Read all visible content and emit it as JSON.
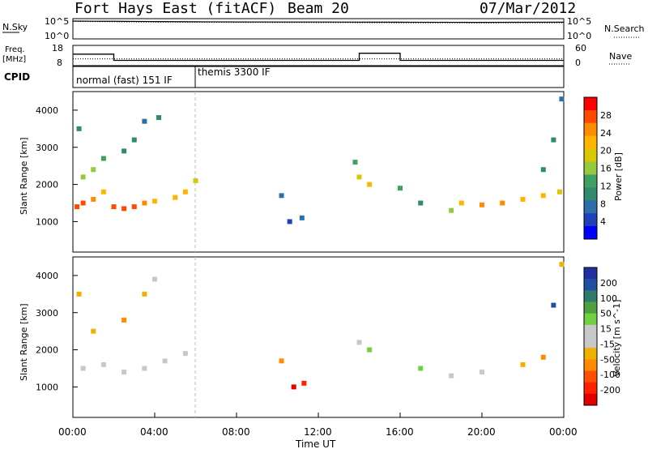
{
  "header": {
    "title": "Fort Hays East (fitACF)",
    "beam": "Beam 20",
    "date": "07/Mar/2012"
  },
  "sky_panel": {
    "left_label": "N.Sky",
    "right_label": "N.Search",
    "y_ticks": [
      "10^5",
      "10^0"
    ]
  },
  "freq_panel": {
    "left_label_line1": "Freq.",
    "left_label_line2": "[MHz]",
    "right_label": "Nave",
    "left_ticks": [
      "18",
      "8"
    ],
    "right_ticks": [
      "60",
      "0"
    ]
  },
  "cpid": {
    "label": "CPID",
    "modes": [
      "normal (fast) 151 IF",
      "themis 3300 IF"
    ]
  },
  "power_panel": {
    "ylabel": "Slant Range [km]",
    "y_ticks": [
      "4000",
      "3000",
      "2000",
      "1000"
    ],
    "colorbar_label": "Power [dB]",
    "colorbar_ticks": [
      "28",
      "24",
      "20",
      "16",
      "12",
      "8",
      "4"
    ],
    "colors": [
      "#ff0000",
      "#ff4a00",
      "#ff8c00",
      "#ffb400",
      "#d8c800",
      "#96c840",
      "#40a060",
      "#2f8a6e",
      "#2c6fa8",
      "#2040b8",
      "#0000ff"
    ]
  },
  "velocity_panel": {
    "ylabel": "Slant Range [km]",
    "y_ticks": [
      "4000",
      "3000",
      "2000",
      "1000"
    ],
    "colorbar_label": "Velocity [m s^-1]",
    "colorbar_ticks": [
      "200",
      "100",
      "50",
      "15",
      "-15",
      "-50",
      "-100",
      "-200"
    ],
    "colors": [
      "#2030a0",
      "#2050a0",
      "#2f7a6e",
      "#4fa040",
      "#70d040",
      "#c8c8c8",
      "#c8c8c8",
      "#f0b000",
      "#ff8c00",
      "#ff5000",
      "#ff2000",
      "#e00000"
    ]
  },
  "x_axis": {
    "label": "Time UT",
    "ticks": [
      "00:00",
      "04:00",
      "08:00",
      "12:00",
      "16:00",
      "20:00",
      "00:00"
    ]
  },
  "chart_data": [
    {
      "type": "line",
      "title": "N.Sky / N.Search",
      "x": [
        0,
        1,
        2,
        4,
        6,
        8,
        12,
        16,
        20,
        24
      ],
      "series": [
        {
          "name": "N.Sky",
          "values": [
            100000,
            90000,
            85000,
            70000,
            60000,
            55000,
            50000,
            45000,
            40000,
            45000
          ]
        },
        {
          "name": "N.Search",
          "values": [
            80000,
            70000,
            60000,
            50000,
            45000,
            40000,
            35000,
            30000,
            28000,
            30000
          ]
        }
      ],
      "ylim": [
        1,
        100000
      ],
      "xlim": [
        0,
        24
      ]
    },
    {
      "type": "line",
      "title": "Freq / Nave",
      "x": [
        0,
        2,
        2,
        14,
        14,
        16,
        16,
        24
      ],
      "series": [
        {
          "name": "Freq.",
          "values": [
            14,
            14,
            10.5,
            10.5,
            14.5,
            14.5,
            10.5,
            10.5
          ]
        },
        {
          "name": "Nave",
          "values": [
            20,
            20,
            20,
            20,
            20,
            20,
            20,
            20
          ]
        }
      ],
      "ylim": [
        8,
        18
      ],
      "xlim": [
        0,
        24
      ]
    },
    {
      "type": "heatmap",
      "title": "Power [dB]",
      "xlabel": "Time UT",
      "ylabel": "Slant Range [km]",
      "xlim": [
        0,
        24
      ],
      "ylim": [
        180,
        4500
      ],
      "clim": [
        0,
        30
      ],
      "points": [
        [
          0.2,
          1400,
          28
        ],
        [
          0.5,
          1500,
          26
        ],
        [
          1.0,
          1600,
          24
        ],
        [
          1.5,
          1800,
          22
        ],
        [
          2.0,
          1400,
          26
        ],
        [
          2.5,
          1350,
          28
        ],
        [
          3.0,
          1400,
          26
        ],
        [
          3.5,
          1500,
          24
        ],
        [
          4.0,
          1550,
          22
        ],
        [
          5.0,
          1650,
          20
        ],
        [
          5.5,
          1800,
          22
        ],
        [
          6.0,
          2100,
          18
        ],
        [
          0.5,
          2200,
          16
        ],
        [
          1.0,
          2400,
          14
        ],
        [
          1.5,
          2700,
          12
        ],
        [
          2.5,
          2900,
          10
        ],
        [
          3.0,
          3200,
          8
        ],
        [
          3.5,
          3700,
          6
        ],
        [
          4.2,
          3800,
          8
        ],
        [
          0.3,
          3500,
          10
        ],
        [
          10.2,
          1700,
          6
        ],
        [
          10.6,
          1000,
          4
        ],
        [
          11.2,
          1100,
          6
        ],
        [
          13.8,
          2600,
          12
        ],
        [
          14.0,
          2200,
          18
        ],
        [
          14.5,
          2000,
          22
        ],
        [
          16.0,
          1900,
          12
        ],
        [
          17.0,
          1500,
          10
        ],
        [
          18.5,
          1300,
          14
        ],
        [
          19.0,
          1500,
          22
        ],
        [
          20.0,
          1450,
          24
        ],
        [
          21.0,
          1500,
          24
        ],
        [
          22.0,
          1600,
          22
        ],
        [
          23.0,
          1700,
          20
        ],
        [
          23.8,
          1800,
          18
        ],
        [
          23.0,
          2400,
          10
        ],
        [
          23.5,
          3200,
          8
        ],
        [
          23.9,
          4300,
          6
        ]
      ]
    },
    {
      "type": "heatmap",
      "title": "Velocity [m s^-1]",
      "xlabel": "Time UT",
      "ylabel": "Slant Range [km]",
      "xlim": [
        0,
        24
      ],
      "ylim": [
        180,
        4500
      ],
      "clim": [
        -200,
        200
      ],
      "points": [
        [
          0.5,
          1500,
          -5
        ],
        [
          1.5,
          1600,
          5
        ],
        [
          2.5,
          1400,
          -8
        ],
        [
          3.5,
          1500,
          3
        ],
        [
          4.5,
          1700,
          -10
        ],
        [
          5.5,
          1900,
          8
        ],
        [
          1.0,
          2500,
          -60
        ],
        [
          2.5,
          2800,
          -80
        ],
        [
          3.5,
          3500,
          -40
        ],
        [
          0.3,
          3500,
          -70
        ],
        [
          4.0,
          3900,
          -30
        ],
        [
          10.2,
          1700,
          -80
        ],
        [
          10.8,
          1000,
          -220
        ],
        [
          11.3,
          1100,
          -180
        ],
        [
          14.0,
          2200,
          30
        ],
        [
          14.5,
          2000,
          40
        ],
        [
          17.0,
          1500,
          50
        ],
        [
          18.5,
          1300,
          20
        ],
        [
          20.0,
          1400,
          -5
        ],
        [
          22.0,
          1600,
          -60
        ],
        [
          23.0,
          1800,
          -90
        ],
        [
          23.5,
          3200,
          150
        ],
        [
          23.9,
          4300,
          -50
        ]
      ]
    }
  ]
}
